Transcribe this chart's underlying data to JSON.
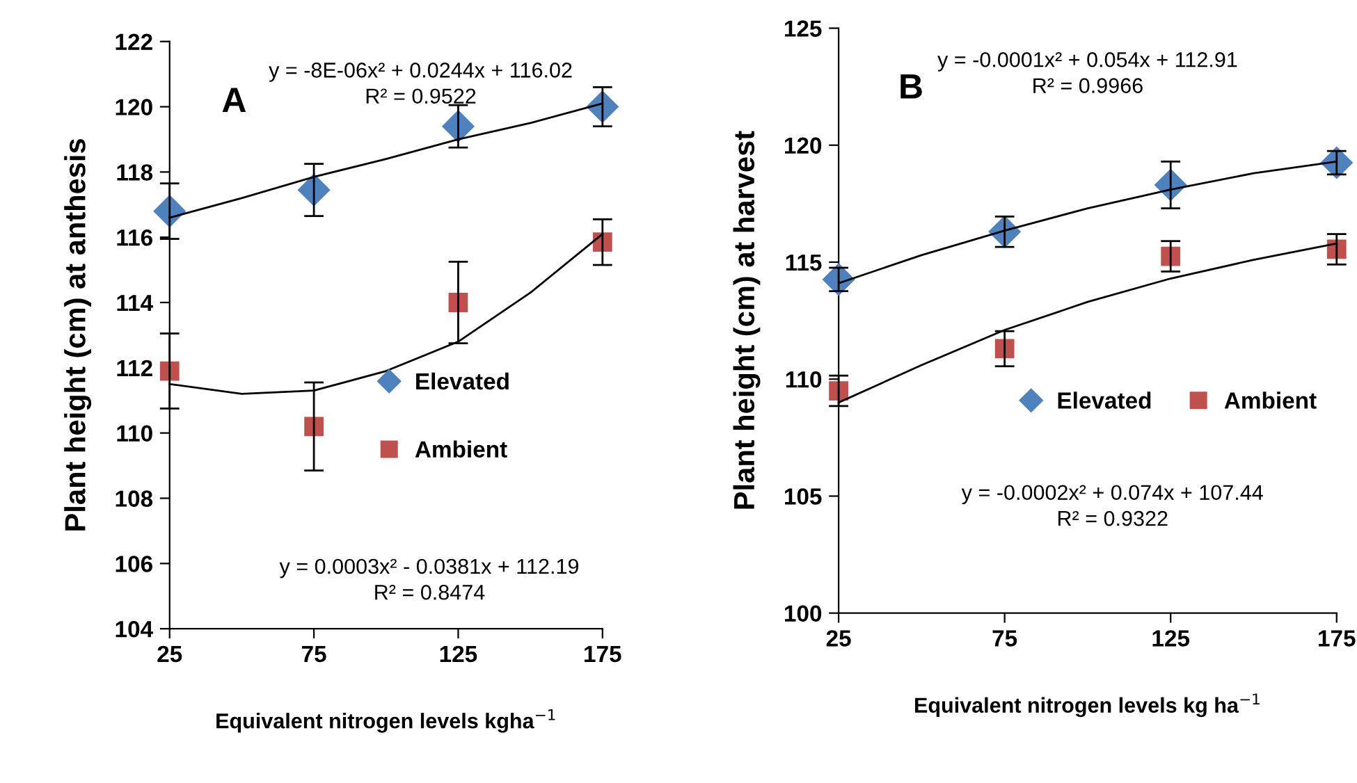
{
  "chart_data": [
    {
      "type": "scatter",
      "title": "A",
      "xlabel": "Equivalent nitrogen levels kgha$^{−1}$",
      "ylabel": "Plant height (cm) at anthesis",
      "x": [
        25,
        75,
        125,
        175
      ],
      "xlim": [
        25,
        175
      ],
      "xticks": [
        25,
        75,
        125,
        175
      ],
      "ylim": [
        104,
        122
      ],
      "yticks": [
        104,
        106,
        108,
        110,
        112,
        114,
        116,
        118,
        120,
        122
      ],
      "grid": false,
      "legend": "center right",
      "annotations": [
        "y = -8E-06x² + 0.0244x + 116.02\nR² = 0.9522",
        "y = 0.0003x² - 0.0381x + 112.19\nR² = 0.8474"
      ],
      "series": [
        {
          "name": "Elevated",
          "marker": "diamond",
          "color": "#4f81bd",
          "values": [
            116.8,
            117.45,
            119.4,
            120.0
          ],
          "errors": [
            0.85,
            0.8,
            0.65,
            0.6
          ]
        },
        {
          "name": "Ambient",
          "marker": "square",
          "color": "#c0504d",
          "values": [
            111.9,
            110.2,
            114.0,
            115.85
          ],
          "errors": [
            1.15,
            1.35,
            1.25,
            0.7
          ]
        },
        {
          "type": "line",
          "color": "#000000",
          "marker": "none",
          "x": [
            25,
            50,
            75,
            100,
            125,
            150,
            175
          ],
          "values": [
            116.6,
            117.2,
            117.85,
            118.4,
            119.0,
            119.5,
            120.1
          ]
        },
        {
          "type": "line",
          "color": "#000000",
          "marker": "none",
          "x": [
            25,
            50,
            75,
            100,
            125,
            150,
            175
          ],
          "values": [
            111.5,
            111.2,
            111.3,
            111.9,
            112.8,
            114.3,
            116.1
          ]
        }
      ]
    },
    {
      "type": "scatter",
      "title": "B",
      "xlabel": "Equivalent nitrogen levels kg ha$^{−1}$",
      "ylabel": "Plant height (cm) at harvest",
      "x": [
        25,
        75,
        125,
        175
      ],
      "xlim": [
        25,
        175
      ],
      "xticks": [
        25,
        75,
        125,
        175
      ],
      "ylim": [
        100,
        125
      ],
      "yticks": [
        100,
        105,
        110,
        115,
        120,
        125
      ],
      "grid": false,
      "legend": "center",
      "annotations": [
        "y = -0.0001x² + 0.054x + 112.91\nR² = 0.9966",
        "y = -0.0002x² + 0.074x + 107.44\nR² = 0.9322"
      ],
      "series": [
        {
          "name": "Elevated",
          "marker": "diamond",
          "color": "#4f81bd",
          "values": [
            114.26,
            116.3,
            118.3,
            119.25
          ],
          "errors": [
            0.5,
            0.65,
            1.0,
            0.5
          ]
        },
        {
          "name": "Ambient",
          "marker": "square",
          "color": "#c0504d",
          "values": [
            109.5,
            111.3,
            115.25,
            115.55
          ],
          "errors": [
            0.65,
            0.75,
            0.65,
            0.65
          ]
        },
        {
          "type": "line",
          "color": "#000000",
          "marker": "none",
          "x": [
            25,
            50,
            75,
            100,
            125,
            150,
            175
          ],
          "values": [
            114.1,
            115.3,
            116.35,
            117.3,
            118.1,
            118.8,
            119.3
          ]
        },
        {
          "type": "line",
          "color": "#000000",
          "marker": "none",
          "x": [
            25,
            50,
            75,
            100,
            125,
            150,
            175
          ],
          "values": [
            109.0,
            110.6,
            112.1,
            113.3,
            114.3,
            115.1,
            115.8
          ]
        }
      ]
    }
  ]
}
